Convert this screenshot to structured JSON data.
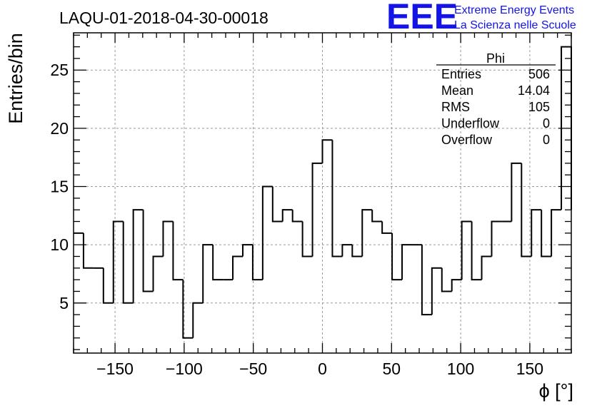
{
  "header": {
    "run_title": "LAQU-01-2018-04-30-00018",
    "logo": {
      "text": "EEE",
      "line1": "Extreme Energy Events",
      "line2": "La Scienza nelle Scuole",
      "color": "#1414e6"
    }
  },
  "stats": {
    "title": "Phi",
    "rows": [
      {
        "label": "Entries",
        "value": "506"
      },
      {
        "label": "Mean",
        "value": "14.04"
      },
      {
        "label": "RMS",
        "value": "105"
      },
      {
        "label": "Underflow",
        "value": "0"
      },
      {
        "label": "Overflow",
        "value": "0"
      }
    ]
  },
  "chart_data": {
    "type": "bar",
    "title": "LAQU-01-2018-04-30-00018",
    "xlabel": "ϕ [°]",
    "ylabel": "Entries/bin",
    "xlim": [
      -180,
      180
    ],
    "ylim": [
      0.7,
      28.2
    ],
    "bin_width": 7.2,
    "grid": true,
    "line_color": "#000000",
    "x_ticks": [
      -150,
      -100,
      -50,
      0,
      50,
      100,
      150
    ],
    "y_ticks": [
      5,
      10,
      15,
      20,
      25
    ],
    "bin_edges_start": -180,
    "values": [
      11,
      8,
      8,
      5,
      12,
      5,
      13,
      6,
      9,
      12,
      7,
      2,
      5,
      10,
      7,
      7,
      9,
      10,
      7,
      15,
      12,
      13,
      12,
      9,
      17,
      19,
      9,
      10,
      9,
      13,
      12,
      11,
      7,
      10,
      10,
      4,
      8,
      6,
      7,
      12,
      7,
      9,
      12,
      12,
      17,
      9,
      13,
      9,
      13,
      27
    ]
  }
}
